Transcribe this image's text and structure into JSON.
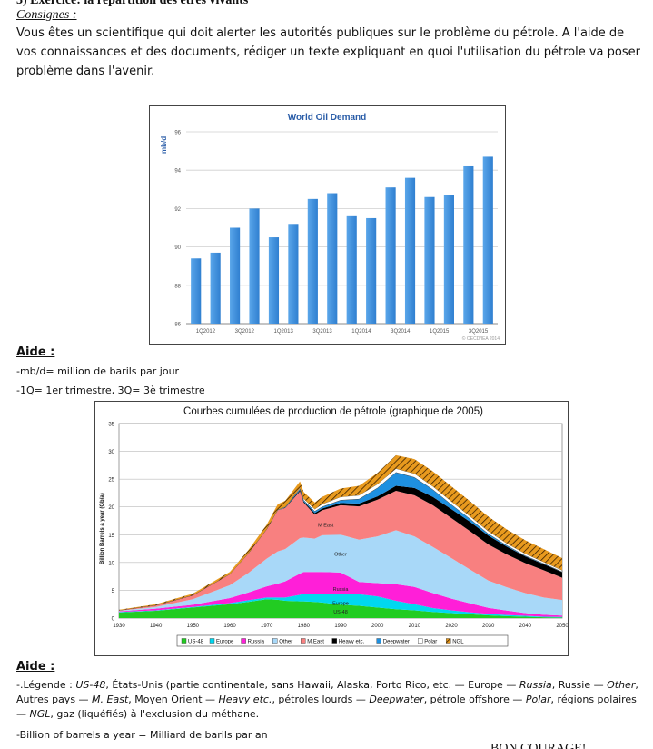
{
  "exercise_title": "3) Exercice: la répartition des êtres vivants",
  "consignes_label": "Consignes :",
  "instructions": "Vous êtes un scientifique qui doit alerter les autorités publiques sur le problème du pétrole. A l'aide de vos connaissances et des documents, rédiger un texte expliquant en quoi l'utilisation du pétrole va poser problème dans l'avenir.",
  "aide1": {
    "heading": "Aide :",
    "line1": "-mb/d= million de barils par jour",
    "line2": "-1Q= 1er trimestre, 3Q= 3è trimestre"
  },
  "aide2": {
    "heading": "Aide :",
    "legend_parts": [
      {
        "t": "-.Légende : ",
        "i": false
      },
      {
        "t": "US-48",
        "i": true
      },
      {
        "t": ", États-Unis (partie continentale, sans Hawaii, Alaska, Porto Rico, etc. — Europe — ",
        "i": false
      },
      {
        "t": "Russia",
        "i": true
      },
      {
        "t": ", Russie — ",
        "i": false
      },
      {
        "t": "Other",
        "i": true
      },
      {
        "t": ", Autres pays — ",
        "i": false
      },
      {
        "t": "M. East",
        "i": true
      },
      {
        "t": ", Moyen Orient — ",
        "i": false
      },
      {
        "t": "Heavy etc.",
        "i": true
      },
      {
        "t": ", pétroles lourds — ",
        "i": false
      },
      {
        "t": "Deepwater",
        "i": true
      },
      {
        "t": ", pétrole offshore — ",
        "i": false
      },
      {
        "t": "Polar",
        "i": true
      },
      {
        "t": ", régions polaires — ",
        "i": false
      },
      {
        "t": "NGL",
        "i": true
      },
      {
        "t": ", gaz (liquéfiés) à l'exclusion du méthane.",
        "i": false
      }
    ],
    "billion": "-Billion of barrels a year = Milliard de barils par an"
  },
  "closing": "BON COURAGE!",
  "chart_data": [
    {
      "type": "bar",
      "title": "World Oil Demand",
      "ylabel": "mb/d",
      "xlabel": "",
      "ylim": [
        86,
        96
      ],
      "yticks": [
        86,
        88,
        90,
        92,
        94,
        96
      ],
      "bar_color": "#2f7fd0",
      "categories": [
        "1Q2012",
        "2Q2012",
        "3Q2012",
        "4Q2012",
        "1Q2013",
        "2Q2013",
        "3Q2013",
        "4Q2013",
        "1Q2014",
        "2Q2014",
        "3Q2014",
        "4Q2014",
        "1Q2015",
        "2Q2015",
        "3Q2015",
        "4Q2015"
      ],
      "tick_labels": [
        "1Q2012",
        "3Q2012",
        "1Q2013",
        "3Q2013",
        "1Q2014",
        "3Q2014",
        "1Q2015",
        "3Q2015"
      ],
      "values": [
        89.4,
        89.7,
        91.0,
        92.0,
        90.5,
        91.2,
        92.5,
        92.8,
        91.6,
        91.5,
        93.1,
        93.6,
        92.6,
        92.7,
        94.2,
        94.7
      ],
      "source": "© OECD/IEA 2014"
    },
    {
      "type": "area",
      "title": "Courbes cumulées de production de pétrole (graphique de 2005)",
      "ylabel": "Billion Barrels a year (Gb/a)",
      "xlim": [
        1930,
        2050
      ],
      "ylim": [
        0,
        35
      ],
      "xticks": [
        1930,
        1940,
        1950,
        1960,
        1970,
        1980,
        1990,
        2000,
        2010,
        2020,
        2030,
        2040,
        2050
      ],
      "yticks": [
        0,
        5,
        10,
        15,
        20,
        25,
        30,
        35
      ],
      "x": [
        1930,
        1940,
        1950,
        1960,
        1965,
        1970,
        1973,
        1975,
        1979,
        1980,
        1983,
        1985,
        1990,
        1995,
        2000,
        2005,
        2010,
        2015,
        2020,
        2025,
        2030,
        2035,
        2040,
        2045,
        2050
      ],
      "series": [
        {
          "name": "US-48",
          "color": "#22cc22",
          "values": [
            1.0,
            1.3,
            1.9,
            2.5,
            2.9,
            3.4,
            3.3,
            3.1,
            3.0,
            3.0,
            2.9,
            2.8,
            2.4,
            2.2,
            1.9,
            1.6,
            1.4,
            1.1,
            0.9,
            0.7,
            0.5,
            0.35,
            0.25,
            0.15,
            0.1
          ]
        },
        {
          "name": "Europe",
          "color": "#00d8f0",
          "values": [
            0.1,
            0.1,
            0.1,
            0.2,
            0.3,
            0.3,
            0.4,
            0.6,
            1.2,
            1.4,
            1.5,
            1.6,
            2.0,
            2.1,
            2.0,
            1.5,
            1.1,
            0.7,
            0.5,
            0.35,
            0.25,
            0.2,
            0.15,
            0.1,
            0.1
          ]
        },
        {
          "name": "Russia",
          "color": "#ff1fd8",
          "values": [
            0.1,
            0.3,
            0.4,
            0.9,
            1.4,
            2.0,
            2.5,
            2.9,
            3.8,
            3.9,
            3.9,
            3.9,
            3.8,
            2.2,
            2.4,
            3.0,
            3.1,
            2.7,
            2.1,
            1.6,
            1.1,
            0.8,
            0.5,
            0.35,
            0.25
          ]
        },
        {
          "name": "Other",
          "color": "#a8d8f8",
          "values": [
            0.1,
            0.3,
            1.0,
            2.3,
            3.5,
            5.0,
            5.8,
            5.8,
            6.4,
            6.2,
            6.0,
            6.6,
            6.8,
            7.6,
            8.4,
            9.7,
            9.1,
            8.3,
            7.3,
            6.1,
            4.9,
            4.2,
            3.6,
            3.1,
            2.8
          ]
        },
        {
          "name": "M.East",
          "color": "#f88080",
          "values": [
            0.1,
            0.3,
            0.7,
            2.0,
            3.5,
            5.3,
            7.4,
            7.4,
            8.4,
            6.3,
            4.3,
            4.5,
            5.3,
            6.0,
            6.6,
            7.1,
            7.4,
            7.5,
            7.2,
            6.9,
            6.5,
            5.9,
            5.4,
            4.9,
            4.0
          ]
        },
        {
          "name": "Heavy etc.",
          "color": "#000000",
          "values": [
            0,
            0,
            0,
            0,
            0,
            0,
            0,
            0.1,
            0.2,
            0.2,
            0.3,
            0.3,
            0.4,
            0.5,
            0.6,
            0.9,
            1.3,
            1.5,
            1.6,
            1.7,
            1.6,
            1.4,
            1.2,
            1.1,
            1.0
          ]
        },
        {
          "name": "Deepwater",
          "color": "#1e90e0",
          "values": [
            0,
            0,
            0,
            0,
            0,
            0,
            0.1,
            0.1,
            0.2,
            0.2,
            0.3,
            0.3,
            0.5,
            0.8,
            1.5,
            2.4,
            1.9,
            1.3,
            0.8,
            0.5,
            0.3,
            0.2,
            0.1,
            0.1,
            0.05
          ]
        },
        {
          "name": "Polar",
          "color": "#ffffff",
          "values": [
            0,
            0,
            0,
            0,
            0,
            0,
            0,
            0,
            0.2,
            0.3,
            0.4,
            0.5,
            0.6,
            0.7,
            0.7,
            0.7,
            0.7,
            0.6,
            0.6,
            0.5,
            0.5,
            0.4,
            0.4,
            0.3,
            0.3
          ]
        },
        {
          "name": "NGL",
          "color": "#e89a1e",
          "values": [
            0.1,
            0.2,
            0.3,
            0.4,
            0.6,
            0.8,
            1.0,
            1.1,
            1.2,
            1.2,
            1.2,
            1.3,
            1.5,
            1.7,
            2.0,
            2.4,
            2.6,
            2.7,
            2.7,
            2.7,
            2.6,
            2.5,
            2.4,
            2.3,
            2.2
          ]
        }
      ],
      "annotations": [
        {
          "text": "M East",
          "x": 1986,
          "y": 16.4
        },
        {
          "text": "Other",
          "x": 1990,
          "y": 11.2
        },
        {
          "text": "Russia",
          "x": 1990,
          "y": 4.9
        },
        {
          "text": "Europe",
          "x": 1990,
          "y": 2.4
        },
        {
          "text": "US-48",
          "x": 1990,
          "y": 0.8
        }
      ]
    }
  ]
}
